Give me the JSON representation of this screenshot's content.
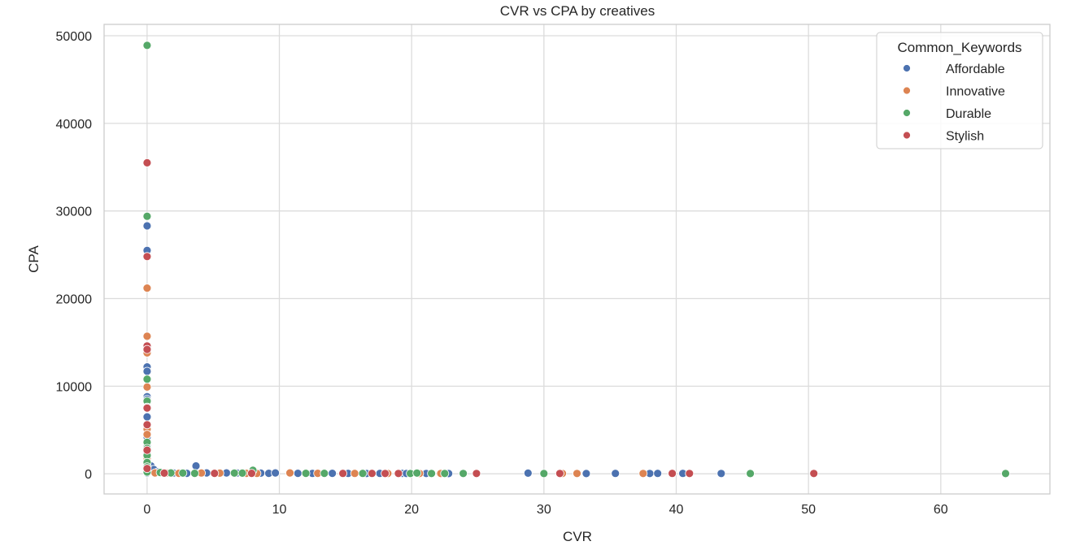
{
  "chart_data": {
    "type": "scatter",
    "title": "CVR vs CPA by creatives",
    "xlabel": "CVR",
    "ylabel": "CPA",
    "xlim": [
      -3.25,
      68.25
    ],
    "ylim": [
      -2300,
      51300
    ],
    "xticks": [
      0,
      10,
      20,
      30,
      40,
      50,
      60
    ],
    "yticks": [
      0,
      10000,
      20000,
      30000,
      40000,
      50000
    ],
    "grid": true,
    "legend": {
      "title": "Common_Keywords",
      "placement": "top-right"
    },
    "colors": {
      "Affordable": "#4C72B0",
      "Innovative": "#DD8452",
      "Durable": "#55A868",
      "Stylish": "#C44E52"
    },
    "series": [
      {
        "name": "Affordable",
        "points": [
          [
            0,
            28300
          ],
          [
            0,
            25500
          ],
          [
            0,
            12200
          ],
          [
            0,
            11700
          ],
          [
            0,
            8800
          ],
          [
            0,
            8500
          ],
          [
            0,
            6500
          ],
          [
            0,
            4200
          ],
          [
            0,
            3100
          ],
          [
            0,
            2400
          ],
          [
            0,
            1600
          ],
          [
            0,
            900
          ],
          [
            0,
            400
          ],
          [
            0,
            100
          ],
          [
            0.3,
            900
          ],
          [
            0.5,
            500
          ],
          [
            0.8,
            200
          ],
          [
            1.2,
            100
          ],
          [
            2.0,
            80
          ],
          [
            3.0,
            60
          ],
          [
            3.7,
            900
          ],
          [
            4.5,
            100
          ],
          [
            6.0,
            100
          ],
          [
            6.8,
            80
          ],
          [
            8.6,
            70
          ],
          [
            9.2,
            60
          ],
          [
            9.7,
            100
          ],
          [
            11.4,
            60
          ],
          [
            12.5,
            50
          ],
          [
            14.0,
            60
          ],
          [
            15.2,
            50
          ],
          [
            16.6,
            40
          ],
          [
            17.6,
            50
          ],
          [
            19.3,
            50
          ],
          [
            19.6,
            40
          ],
          [
            21.1,
            40
          ],
          [
            22.8,
            30
          ],
          [
            28.8,
            70
          ],
          [
            33.2,
            30
          ],
          [
            35.4,
            50
          ],
          [
            38.0,
            40
          ],
          [
            38.6,
            50
          ],
          [
            40.5,
            50
          ],
          [
            43.4,
            40
          ]
        ]
      },
      {
        "name": "Innovative",
        "points": [
          [
            0,
            21200
          ],
          [
            0,
            15700
          ],
          [
            0,
            13800
          ],
          [
            0,
            9900
          ],
          [
            0,
            5100
          ],
          [
            0,
            4500
          ],
          [
            0,
            1800
          ],
          [
            0,
            300
          ],
          [
            0.6,
            100
          ],
          [
            1.5,
            80
          ],
          [
            2.4,
            60
          ],
          [
            4.1,
            90
          ],
          [
            5.5,
            70
          ],
          [
            7.5,
            60
          ],
          [
            8.3,
            50
          ],
          [
            10.8,
            100
          ],
          [
            12.9,
            60
          ],
          [
            15.7,
            50
          ],
          [
            18.2,
            40
          ],
          [
            20.6,
            40
          ],
          [
            22.2,
            40
          ],
          [
            31.4,
            40
          ],
          [
            32.5,
            40
          ],
          [
            37.5,
            40
          ],
          [
            41.0,
            40
          ]
        ]
      },
      {
        "name": "Durable",
        "points": [
          [
            0,
            48900
          ],
          [
            0,
            29400
          ],
          [
            0,
            10800
          ],
          [
            0,
            8300
          ],
          [
            0,
            7600
          ],
          [
            0,
            3600
          ],
          [
            0,
            2900
          ],
          [
            0,
            2100
          ],
          [
            0,
            1300
          ],
          [
            0,
            800
          ],
          [
            0,
            200
          ],
          [
            1.0,
            150
          ],
          [
            1.8,
            100
          ],
          [
            2.7,
            80
          ],
          [
            3.6,
            60
          ],
          [
            6.6,
            80
          ],
          [
            7.2,
            70
          ],
          [
            8.0,
            400
          ],
          [
            12.0,
            60
          ],
          [
            13.4,
            60
          ],
          [
            16.3,
            50
          ],
          [
            19.9,
            40
          ],
          [
            20.4,
            80
          ],
          [
            21.5,
            40
          ],
          [
            22.5,
            40
          ],
          [
            23.9,
            40
          ],
          [
            30.0,
            30
          ],
          [
            45.6,
            30
          ],
          [
            64.9,
            30
          ]
        ]
      },
      {
        "name": "Stylish",
        "points": [
          [
            0,
            35500
          ],
          [
            0,
            24800
          ],
          [
            0,
            14600
          ],
          [
            0,
            14200
          ],
          [
            0,
            7500
          ],
          [
            0,
            5600
          ],
          [
            0,
            2700
          ],
          [
            0,
            600
          ],
          [
            1.3,
            70
          ],
          [
            5.1,
            60
          ],
          [
            7.9,
            60
          ],
          [
            14.8,
            50
          ],
          [
            17.0,
            50
          ],
          [
            18.0,
            40
          ],
          [
            19.0,
            40
          ],
          [
            24.9,
            40
          ],
          [
            31.2,
            40
          ],
          [
            39.7,
            50
          ],
          [
            41.0,
            40
          ],
          [
            50.4,
            40
          ]
        ]
      }
    ]
  }
}
